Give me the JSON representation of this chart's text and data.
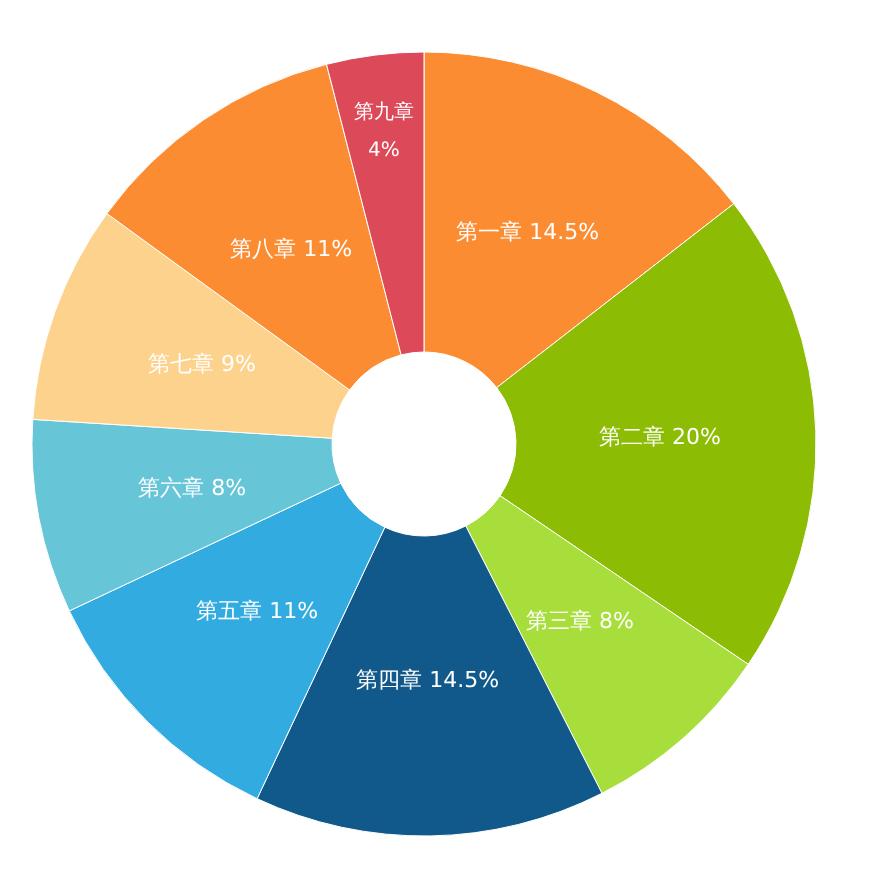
{
  "chart_data": {
    "type": "donut",
    "categories": [
      "第一章",
      "第二章",
      "第三章",
      "第四章",
      "第五章",
      "第六章",
      "第七章",
      "第八章",
      "第九章"
    ],
    "values": [
      14.5,
      20,
      8,
      14.5,
      11,
      8,
      9,
      11,
      4
    ],
    "value_labels": [
      "14.5%",
      "20%",
      "8%",
      "14.5%",
      "11%",
      "8%",
      "9%",
      "11%",
      "4%"
    ],
    "colors": [
      "#fb8c32",
      "#8cbc04",
      "#a8de3c",
      "#11598a",
      "#32ace0",
      "#66c6d8",
      "#fdd28c",
      "#fb8c32",
      "#dc4a5a"
    ]
  }
}
